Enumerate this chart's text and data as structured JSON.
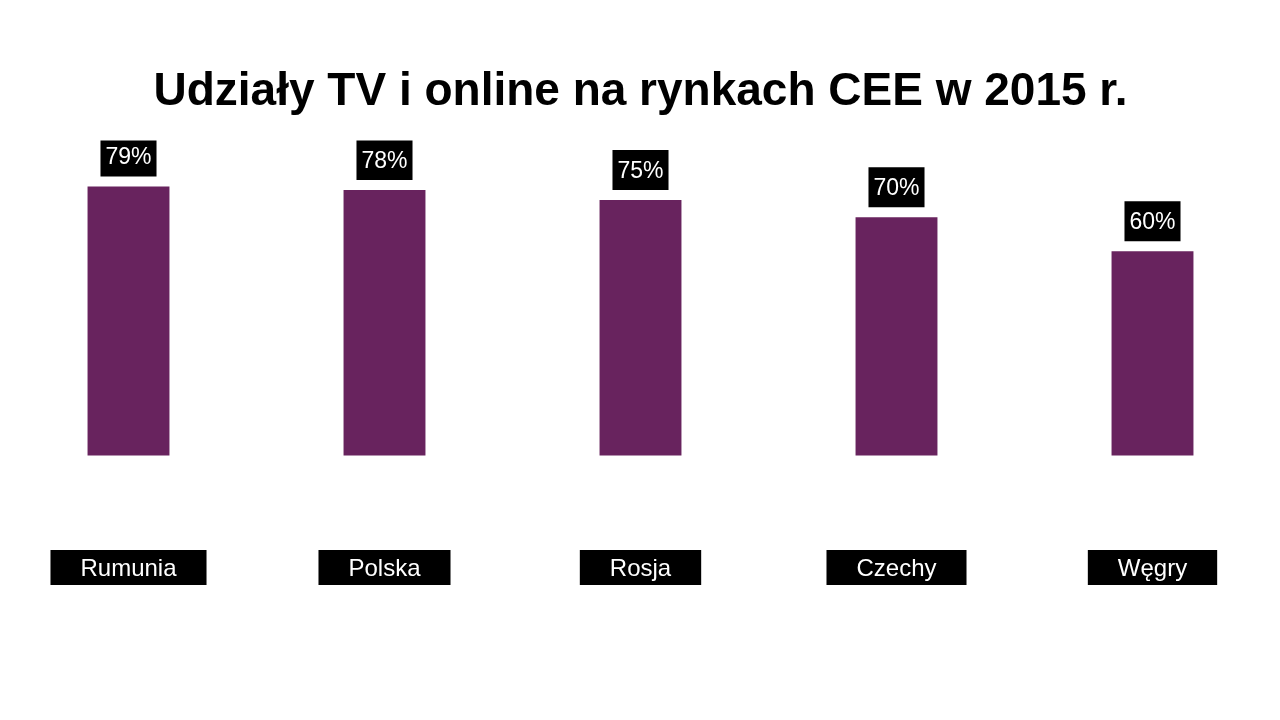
{
  "chart_data": {
    "type": "bar",
    "title": "Udziały TV i online na rynkach CEE w 2015 r.",
    "categories": [
      "Rumunia",
      "Polska",
      "Rosja",
      "Czechy",
      "Węgry"
    ],
    "values": [
      79,
      78,
      75,
      70,
      60
    ],
    "value_labels": [
      "79%",
      "78%",
      "75%",
      "70%",
      "60%"
    ],
    "color": "#68235e"
  }
}
